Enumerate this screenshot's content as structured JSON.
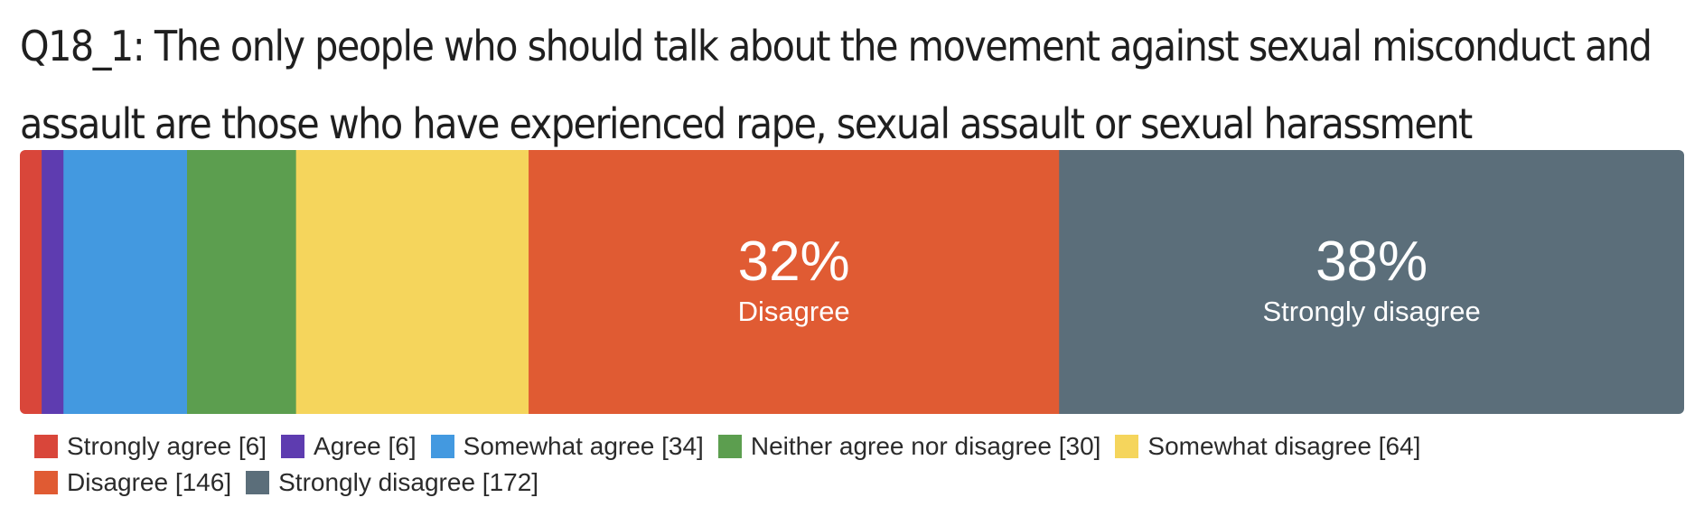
{
  "title_lines": [
    "Q18_1: The only people who should talk about the movement against sexual misconduct and",
    "assault are those who have experienced rape, sexual assault or sexual harassment"
  ],
  "chart_data": {
    "type": "bar",
    "orientation": "horizontal-stacked-100",
    "title": "Q18_1: The only people who should talk about the movement against sexual misconduct and assault are those who have experienced rape, sexual assault or sexual harassment",
    "categories": [
      ""
    ],
    "series": [
      {
        "name": "Strongly agree",
        "values": [
          6
        ],
        "color": "#d9463a"
      },
      {
        "name": "Agree",
        "values": [
          6
        ],
        "color": "#5e3cb0"
      },
      {
        "name": "Somewhat agree",
        "values": [
          34
        ],
        "color": "#4399e0"
      },
      {
        "name": "Neither agree nor disagree",
        "values": [
          30
        ],
        "color": "#5c9e4f"
      },
      {
        "name": "Somewhat disagree",
        "values": [
          64
        ],
        "color": "#f5d55c"
      },
      {
        "name": "Disagree",
        "values": [
          146
        ],
        "color": "#e05b33"
      },
      {
        "name": "Strongly disagree",
        "values": [
          172
        ],
        "color": "#5b6e7a"
      }
    ],
    "data_labels": [
      {
        "series": "Disagree",
        "percent": "32%",
        "label": "Disagree"
      },
      {
        "series": "Strongly disagree",
        "percent": "38%",
        "label": "Strongly disagree"
      }
    ],
    "legend": {
      "placement": "bottom",
      "rows": [
        [
          "Strongly agree [6]",
          "Agree [6]",
          "Somewhat agree [34]",
          "Neither agree nor disagree [30]",
          "Somewhat disagree [64]"
        ],
        [
          "Disagree [146]",
          "Strongly disagree [172]"
        ]
      ]
    }
  }
}
